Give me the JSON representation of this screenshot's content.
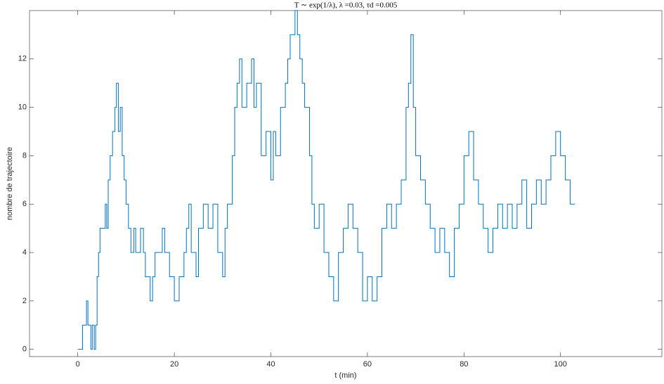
{
  "chart_data": {
    "type": "line",
    "drawstyle": "steps-post",
    "title": "T ∼ exp(1/λ), λ =0.03, τd =0.005",
    "xlabel": "t (min)",
    "ylabel": "nombre de trajectoire",
    "xlim": [
      -10,
      121
    ],
    "ylim": [
      -0.3,
      14
    ],
    "xticks": [
      0,
      20,
      40,
      60,
      80,
      100
    ],
    "yticks": [
      0,
      2,
      4,
      6,
      8,
      10,
      12
    ],
    "grid": false,
    "series": [
      {
        "color": "#0072bd",
        "x": [
          0,
          1,
          1.8,
          2.1,
          2.7,
          3,
          3.4,
          3.7,
          4,
          4.3,
          4.6,
          5.4,
          5.7,
          6,
          6.3,
          6.7,
          7.2,
          7.7,
          8,
          8.4,
          8.8,
          9.2,
          9.6,
          10,
          10.5,
          11,
          11.6,
          12,
          13,
          13.6,
          14,
          15,
          15.5,
          16,
          17.5,
          18,
          19,
          20,
          21,
          22,
          22.5,
          23,
          23.5,
          24.5,
          25,
          26,
          27,
          28,
          29,
          30,
          30.5,
          31,
          32,
          32.5,
          33,
          33.5,
          34,
          35,
          36,
          36.5,
          37,
          38,
          39,
          40,
          40.5,
          41,
          42,
          43,
          43.5,
          44,
          45,
          45.5,
          46,
          46.5,
          47,
          48,
          48.5,
          49,
          50,
          51,
          52,
          53,
          54,
          55,
          56,
          57,
          58,
          59,
          60,
          61,
          62,
          63,
          64,
          65,
          66,
          67,
          68,
          68.5,
          69,
          69.5,
          70,
          71,
          72,
          73,
          74,
          75,
          76,
          77,
          78,
          79,
          80,
          81,
          82,
          83,
          84,
          85,
          86,
          87,
          88,
          89,
          90,
          91,
          92,
          93,
          94,
          95,
          96,
          97,
          98,
          99,
          100,
          101,
          102,
          103
        ],
        "values": [
          0,
          1,
          2,
          1,
          0,
          1,
          0,
          1,
          3,
          4,
          5,
          5,
          6,
          5,
          7,
          8,
          9,
          10,
          11,
          9,
          10,
          8,
          7,
          6,
          5,
          4,
          5,
          4,
          5,
          4,
          3,
          2,
          3,
          4,
          5,
          4,
          3,
          2,
          3,
          4,
          5,
          6,
          4,
          3,
          5,
          6,
          5,
          6,
          4,
          3,
          5,
          6,
          8,
          10,
          11,
          12,
          10,
          11,
          12,
          10,
          11,
          8,
          9,
          7,
          9,
          8,
          10,
          11,
          12,
          13,
          14,
          13,
          12,
          11,
          10,
          8,
          6,
          5,
          6,
          4,
          3,
          2,
          4,
          5,
          6,
          5,
          4,
          2,
          3,
          2,
          3,
          5,
          6,
          5,
          6,
          7,
          10,
          11,
          13,
          10,
          8,
          7,
          6,
          5,
          4,
          5,
          4,
          3,
          5,
          6,
          8,
          9,
          7,
          6,
          5,
          4,
          5,
          6,
          5,
          6,
          5,
          6,
          7,
          5,
          6,
          7,
          6,
          7,
          8,
          9,
          8,
          7,
          6,
          6
        ]
      }
    ]
  }
}
